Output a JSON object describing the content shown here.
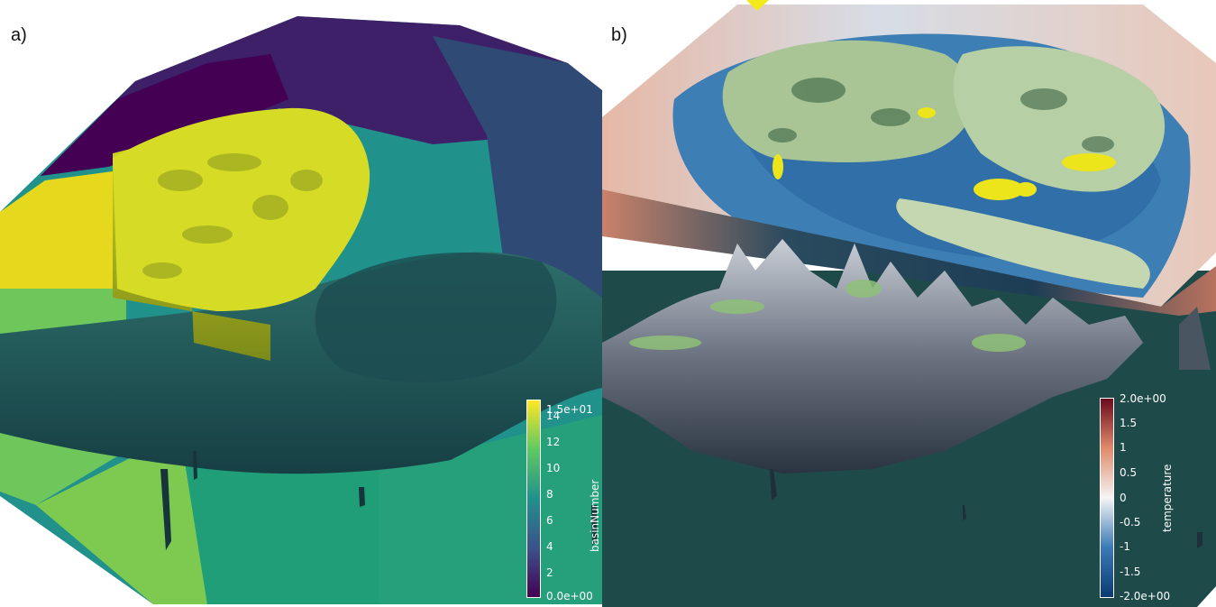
{
  "panel_a": {
    "label": "a)",
    "colorbar": {
      "title": "basinNumber",
      "ticks": [
        "1.5e+01",
        "14",
        "12",
        "10",
        "8",
        "6",
        "4",
        "2",
        "0.0e+00"
      ],
      "tick_values": [
        15,
        14,
        12,
        10,
        8,
        6,
        4,
        2,
        0
      ],
      "range": [
        0,
        15
      ],
      "colormap": "viridis",
      "colors": [
        "#440154",
        "#3b528b",
        "#21918c",
        "#5ec962",
        "#fde725"
      ]
    }
  },
  "panel_b": {
    "label": "b)",
    "colorbar": {
      "title": "temperature",
      "ticks": [
        "2.0e+00",
        "1.5",
        "1",
        "0.5",
        "0",
        "-0.5",
        "-1",
        "-1.5",
        "-2.0e+00"
      ],
      "tick_values": [
        2,
        1.5,
        1,
        0.5,
        0,
        -0.5,
        -1,
        -1.5,
        -2
      ],
      "range": [
        -2,
        2
      ],
      "colormap": "diverging blue-white-red",
      "colors": [
        "#0b3a72",
        "#3b7ab8",
        "#f5f5f5",
        "#e08a6b",
        "#6b0a1e"
      ]
    }
  }
}
